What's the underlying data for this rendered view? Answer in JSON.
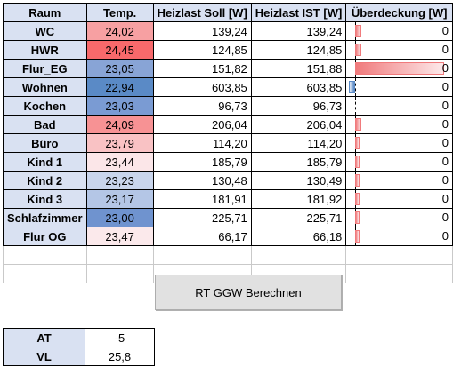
{
  "table": {
    "headers": [
      "Raum",
      "Temp.",
      "Heizlast Soll [W]",
      "Heizlast IST [W]",
      "Überdeckung [W]"
    ],
    "rows": [
      {
        "room": "WC",
        "temp": "24,02",
        "temp_color": "#f7a0a2",
        "soll": "139,24",
        "ist": "139,24",
        "over": "0",
        "bar_level": 0.07,
        "bar_color": "#f07a7c"
      },
      {
        "room": "HWR",
        "temp": "24,45",
        "temp_color": "#f8696b",
        "soll": "124,85",
        "ist": "124,85",
        "over": "0",
        "bar_level": 0.07,
        "bar_color": "#f07a7c"
      },
      {
        "room": "Flur_EG",
        "temp": "23,05",
        "temp_color": "#88a4d6",
        "soll": "151,82",
        "ist": "151,88",
        "over": "0",
        "bar_level": 1.0,
        "bar_color": "#f07a7c"
      },
      {
        "room": "Wohnen",
        "temp": "22,94",
        "temp_color": "#5a8ac6",
        "soll": "603,85",
        "ist": "603,85",
        "over": "0",
        "bar_level": -0.07,
        "bar_color": "#5a8ac6"
      },
      {
        "room": "Kochen",
        "temp": "23,03",
        "temp_color": "#7a9bd3",
        "soll": "96,73",
        "ist": "96,73",
        "over": "0",
        "bar_level": 0,
        "bar_color": "#f07a7c"
      },
      {
        "room": "Bad",
        "temp": "24,09",
        "temp_color": "#f79294",
        "soll": "206,04",
        "ist": "206,04",
        "over": "0",
        "bar_level": 0.07,
        "bar_color": "#f07a7c"
      },
      {
        "room": "Büro",
        "temp": "23,79",
        "temp_color": "#f9c2c4",
        "soll": "114,20",
        "ist": "114,20",
        "over": "0",
        "bar_level": 0.05,
        "bar_color": "#f07a7c"
      },
      {
        "room": "Kind 1",
        "temp": "23,44",
        "temp_color": "#fbe6e8",
        "soll": "185,79",
        "ist": "185,79",
        "over": "0",
        "bar_level": 0.05,
        "bar_color": "#f07a7c"
      },
      {
        "room": "Kind 2",
        "temp": "23,23",
        "temp_color": "#c9d5ec",
        "soll": "130,48",
        "ist": "130,49",
        "over": "0",
        "bar_level": 0.05,
        "bar_color": "#f07a7c"
      },
      {
        "room": "Kind 3",
        "temp": "23,17",
        "temp_color": "#b4c6e6",
        "soll": "181,91",
        "ist": "181,92",
        "over": "0",
        "bar_level": 0.05,
        "bar_color": "#f07a7c"
      },
      {
        "room": "Schlafzimmer",
        "temp": "23,00",
        "temp_color": "#6f93cf",
        "soll": "225,71",
        "ist": "225,71",
        "over": "0",
        "bar_level": 0.05,
        "bar_color": "#f07a7c"
      },
      {
        "room": "Flur OG",
        "temp": "23,47",
        "temp_color": "#fbe9eb",
        "soll": "66,17",
        "ist": "66,18",
        "over": "0",
        "bar_level": 0.05,
        "bar_color": "#f07a7c"
      }
    ]
  },
  "button": {
    "label": "RT GGW Berechnen"
  },
  "params": [
    {
      "label": "AT",
      "value": "-5"
    },
    {
      "label": "VL",
      "value": "25,8"
    }
  ]
}
